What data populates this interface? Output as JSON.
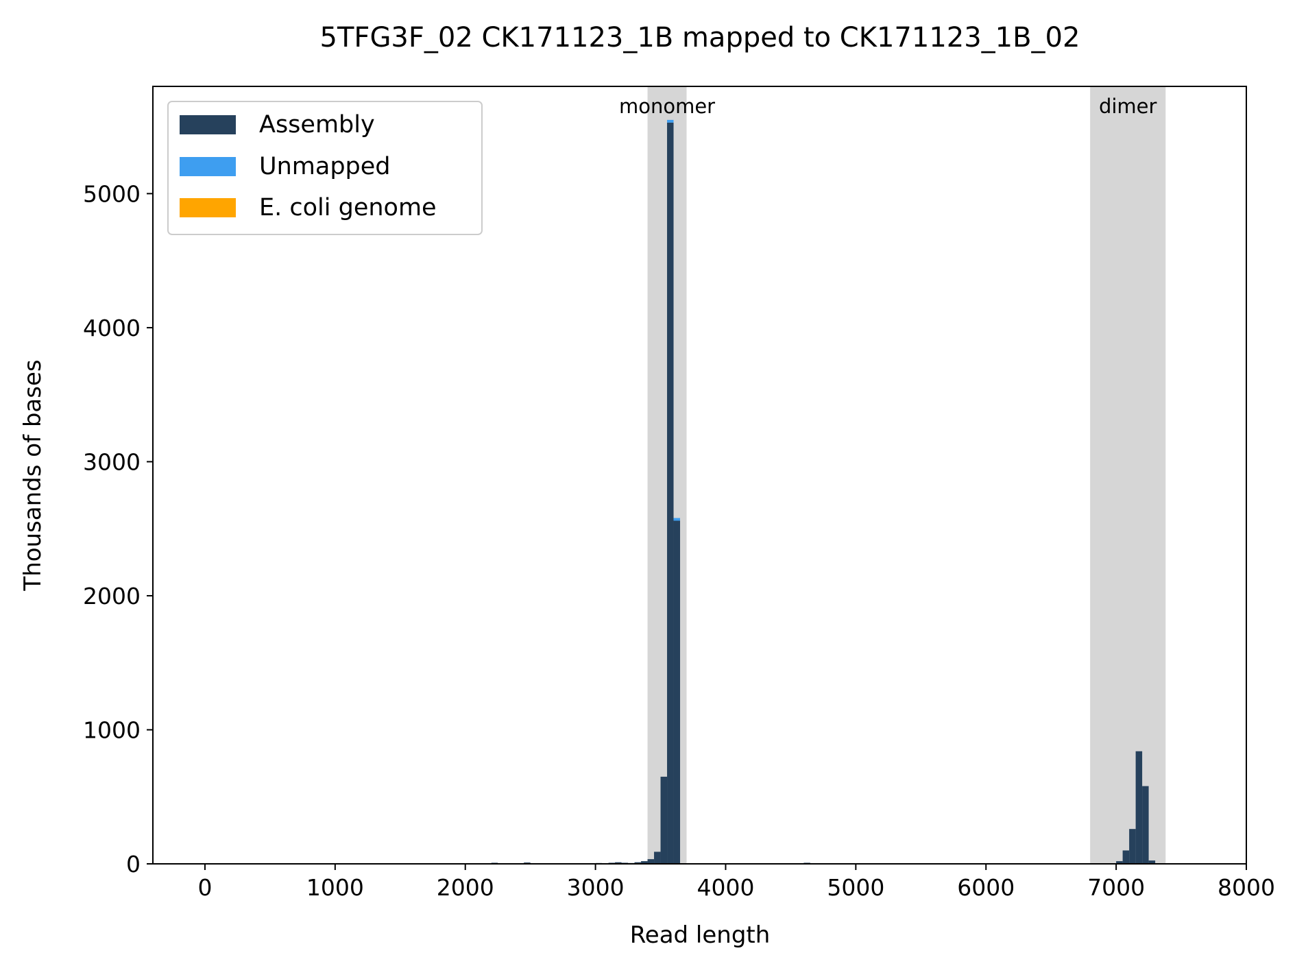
{
  "chart_data": {
    "type": "bar",
    "title": "5TFG3F_02 CK171123_1B mapped to CK171123_1B_02",
    "xlabel": "Read length",
    "ylabel": "Thousands of bases",
    "xlim": [
      -400,
      8000
    ],
    "ylim": [
      0,
      5800
    ],
    "xticks": [
      0,
      1000,
      2000,
      3000,
      4000,
      5000,
      6000,
      7000,
      8000
    ],
    "yticks": [
      0,
      1000,
      2000,
      3000,
      4000,
      5000
    ],
    "legend_position": "upper-left",
    "bin_width": 50,
    "shaded_regions": [
      {
        "label": "monomer",
        "x0": 3400,
        "x1": 3700
      },
      {
        "label": "dimer",
        "x0": 6800,
        "x1": 7380
      }
    ],
    "series": [
      {
        "name": "Assembly",
        "color": "#26415c",
        "bins": [
          {
            "x0": 2200,
            "value": 8
          },
          {
            "x0": 2450,
            "value": 10
          },
          {
            "x0": 3000,
            "value": 6
          },
          {
            "x0": 3100,
            "value": 8
          },
          {
            "x0": 3150,
            "value": 12
          },
          {
            "x0": 3200,
            "value": 8
          },
          {
            "x0": 3250,
            "value": 6
          },
          {
            "x0": 3300,
            "value": 12
          },
          {
            "x0": 3350,
            "value": 20
          },
          {
            "x0": 3400,
            "value": 35
          },
          {
            "x0": 3450,
            "value": 90
          },
          {
            "x0": 3500,
            "value": 650
          },
          {
            "x0": 3550,
            "value": 5530
          },
          {
            "x0": 3600,
            "value": 2560
          },
          {
            "x0": 4600,
            "value": 8
          },
          {
            "x0": 7000,
            "value": 20
          },
          {
            "x0": 7050,
            "value": 100
          },
          {
            "x0": 7100,
            "value": 260
          },
          {
            "x0": 7150,
            "value": 840
          },
          {
            "x0": 7200,
            "value": 580
          },
          {
            "x0": 7250,
            "value": 25
          }
        ]
      },
      {
        "name": "Unmapped",
        "color": "#3e9ef0",
        "bins": [
          {
            "x0": 3550,
            "value": 20
          },
          {
            "x0": 3600,
            "value": 20
          }
        ]
      },
      {
        "name": "E. coli genome",
        "color": "#ffa500",
        "bins": []
      }
    ]
  }
}
